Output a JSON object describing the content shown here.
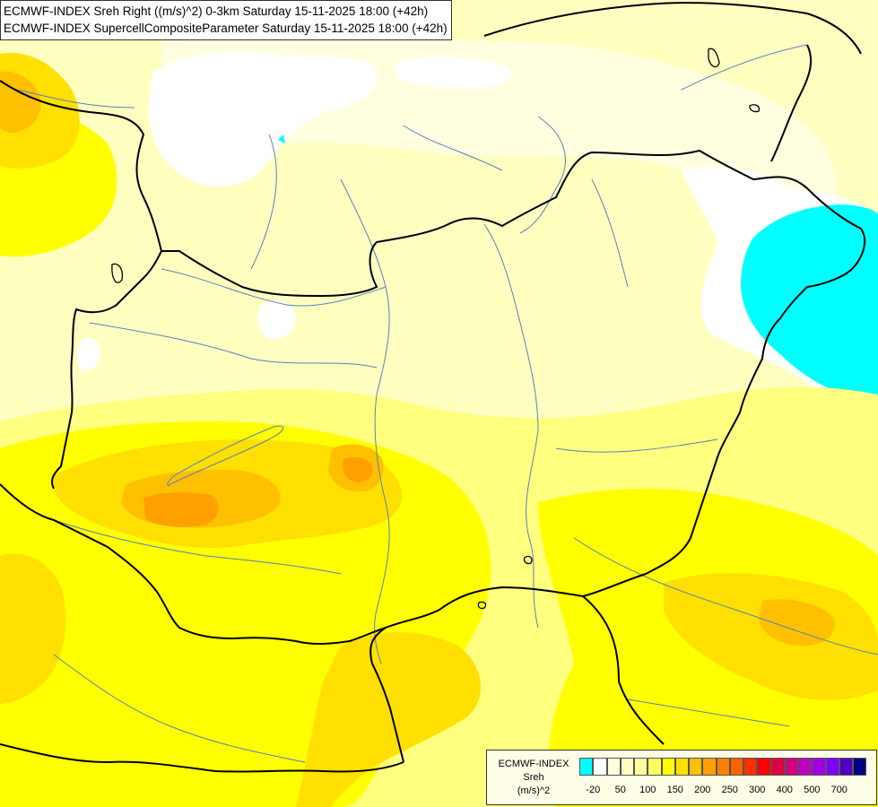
{
  "header": {
    "line1": "ECMWF-INDEX Sreh Right ((m/s)^2) 0-3km Saturday 15-11-2025 18:00 (+42h)",
    "line2": "ECMWF-INDEX SupercellCompositeParameter Saturday 15-11-2025 18:00 (+42h)"
  },
  "legend": {
    "name_line1": "ECMWF-INDEX",
    "name_line2": "Sreh",
    "unit": "(m/s)^2",
    "colors": [
      "#00ffff",
      "#ffffff",
      "#ffffe0",
      "#ffffc0",
      "#ffffa0",
      "#ffff60",
      "#ffff00",
      "#ffe000",
      "#ffc000",
      "#ffa000",
      "#ff8000",
      "#ff6000",
      "#ff3000",
      "#ff0000",
      "#e00040",
      "#d00080",
      "#c000c0",
      "#a000e0",
      "#8000ff",
      "#5000c0",
      "#000080"
    ],
    "ticks": [
      {
        "label": "-20",
        "slot": 1
      },
      {
        "label": "50",
        "slot": 3
      },
      {
        "label": "100",
        "slot": 5
      },
      {
        "label": "150",
        "slot": 7
      },
      {
        "label": "200",
        "slot": 9
      },
      {
        "label": "250",
        "slot": 11
      },
      {
        "label": "300",
        "slot": 13
      },
      {
        "label": "400",
        "slot": 15
      },
      {
        "label": "500",
        "slot": 17
      },
      {
        "label": "700",
        "slot": 19
      }
    ]
  },
  "map": {
    "fill_colors": {
      "base": "#ffffc0",
      "light": "#ffffe0",
      "none": "#ffffff",
      "negative": "#00ffff",
      "yellow_a": "#ffff80",
      "yellow_b": "#ffff00",
      "yellow_c": "#ffe000",
      "orange_a": "#ffc000",
      "orange_b": "#ffa000"
    },
    "line_colors": {
      "border": "#000000",
      "river": "#5a80b8"
    }
  }
}
